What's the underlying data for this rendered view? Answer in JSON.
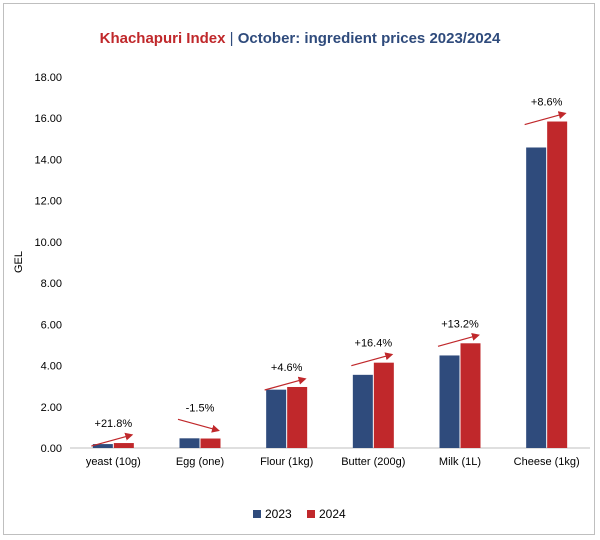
{
  "chart_data": {
    "type": "bar",
    "title_brand": "Khachapuri Index",
    "title_separator": "|",
    "title_rest": "October: ingredient prices 2023/2024",
    "ylabel": "GEL",
    "xlabel": "",
    "ylim": [
      0,
      18
    ],
    "yticks": [
      "0.00",
      "2.00",
      "4.00",
      "6.00",
      "8.00",
      "10.00",
      "12.00",
      "14.00",
      "16.00",
      "18.00"
    ],
    "categories": [
      "yeast (10g)",
      "Egg (one)",
      "Flour (1kg)",
      "Butter (200g)",
      "Milk (1L)",
      "Cheese (1kg)"
    ],
    "series": [
      {
        "name": "2023",
        "color": "#2f4b7c",
        "values": [
          0.19,
          0.47,
          2.83,
          3.55,
          4.49,
          14.58
        ]
      },
      {
        "name": "2024",
        "color": "#c0282b",
        "values": [
          0.24,
          0.46,
          2.96,
          4.14,
          5.08,
          15.84
        ]
      }
    ],
    "annotations": [
      "+21.8%",
      "-1.5%",
      "+4.6%",
      "+16.4%",
      "+13.2%",
      "+8.6%"
    ],
    "arrow_color": "#c0282b",
    "grid": false,
    "legend_position": "bottom"
  }
}
